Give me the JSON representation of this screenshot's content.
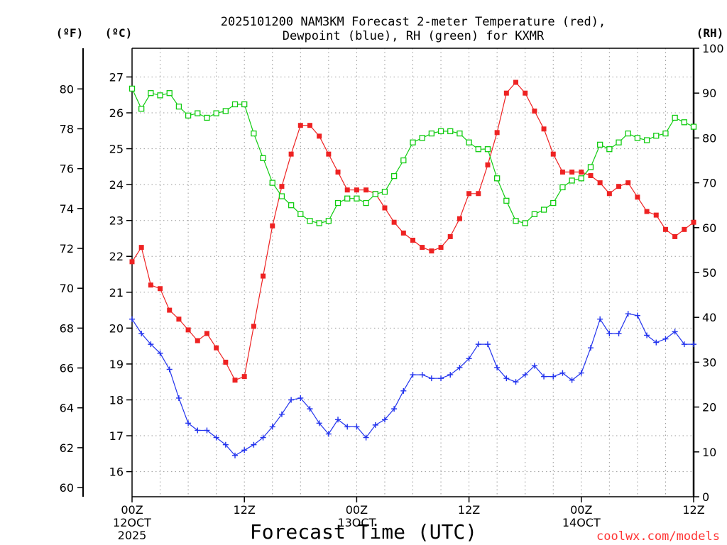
{
  "chart_data": {
    "type": "line",
    "title_line1": "2025101200 NAM3KM Forecast 2-meter Temperature (red),",
    "title_line2": "Dewpoint (blue), RH (green) for KXMR",
    "xlabel": "Forecast Time (UTC)",
    "credit": "coolwx.com/models",
    "units": {
      "fahrenheit": "(ºF)",
      "celsius": "(ºC)",
      "rh": "(RH)"
    },
    "x_unit": "forecast hour",
    "xlim": [
      0,
      60
    ],
    "x_ticks": [
      {
        "hour": 0,
        "label": "00Z",
        "sub1": "12OCT",
        "sub2": "2025"
      },
      {
        "hour": 12,
        "label": "12Z",
        "sub1": "",
        "sub2": ""
      },
      {
        "hour": 24,
        "label": "00Z",
        "sub1": "13OCT",
        "sub2": ""
      },
      {
        "hour": 36,
        "label": "12Z",
        "sub1": "",
        "sub2": ""
      },
      {
        "hour": 48,
        "label": "00Z",
        "sub1": "14OCT",
        "sub2": ""
      },
      {
        "hour": 60,
        "label": "12Z",
        "sub1": "",
        "sub2": ""
      }
    ],
    "c_lim": [
      15.3,
      27.8
    ],
    "c_ticks": [
      "16",
      "17",
      "18",
      "19",
      "20",
      "21",
      "22",
      "23",
      "24",
      "25",
      "26",
      "27"
    ],
    "f_ticks": [
      "60",
      "62",
      "64",
      "66",
      "68",
      "70",
      "72",
      "74",
      "76",
      "78",
      "80"
    ],
    "rh_lim": [
      0,
      100
    ],
    "rh_ticks": [
      "0",
      "10",
      "20",
      "30",
      "40",
      "50",
      "60",
      "70",
      "80",
      "90",
      "100"
    ],
    "colors": {
      "temperature": "#ee2222",
      "dewpoint": "#2233ee",
      "rh": "#11cc11"
    },
    "series": [
      {
        "name": "Temperature (red)",
        "unit": "C",
        "marker": "filled-square",
        "x": [
          0,
          1,
          2,
          3,
          4,
          5,
          6,
          7,
          8,
          9,
          10,
          11,
          12,
          13,
          14,
          15,
          16,
          17,
          18,
          19,
          20,
          21,
          22,
          23,
          24,
          25,
          26,
          27,
          28,
          29,
          30,
          31,
          32,
          33,
          34,
          35,
          36,
          37,
          38,
          39,
          40,
          41,
          42,
          43,
          44,
          45,
          46,
          47,
          48,
          49,
          50,
          51,
          52,
          53,
          54,
          55,
          56,
          57,
          58,
          59,
          60
        ],
        "values": [
          21.85,
          22.25,
          21.2,
          21.1,
          20.5,
          20.25,
          19.95,
          19.65,
          19.85,
          19.45,
          19.05,
          18.55,
          18.65,
          20.05,
          21.45,
          22.85,
          23.95,
          24.85,
          25.65,
          25.65,
          25.35,
          24.85,
          24.35,
          23.85,
          23.85,
          23.85,
          23.75,
          23.35,
          22.95,
          22.65,
          22.45,
          22.25,
          22.15,
          22.25,
          22.55,
          23.05,
          23.75,
          23.75,
          24.55,
          25.45,
          26.55,
          26.85,
          26.55,
          26.05,
          25.55,
          24.85,
          24.35,
          24.35,
          24.35,
          24.25,
          24.05,
          23.75,
          23.95,
          24.05,
          23.65,
          23.25,
          23.15,
          22.75,
          22.55,
          22.75,
          22.95
        ]
      },
      {
        "name": "Dewpoint (blue)",
        "unit": "C",
        "marker": "plus",
        "x": [
          0,
          1,
          2,
          3,
          4,
          5,
          6,
          7,
          8,
          9,
          10,
          11,
          12,
          13,
          14,
          15,
          16,
          17,
          18,
          19,
          20,
          21,
          22,
          23,
          24,
          25,
          26,
          27,
          28,
          29,
          30,
          31,
          32,
          33,
          34,
          35,
          36,
          37,
          38,
          39,
          40,
          41,
          42,
          43,
          44,
          45,
          46,
          47,
          48,
          49,
          50,
          51,
          52,
          53,
          54,
          55,
          56,
          57,
          58,
          59,
          60
        ],
        "values": [
          20.25,
          19.85,
          19.55,
          19.3,
          18.85,
          18.05,
          17.35,
          17.15,
          17.15,
          16.95,
          16.75,
          16.45,
          16.6,
          16.75,
          16.95,
          17.25,
          17.6,
          18.0,
          18.05,
          17.75,
          17.35,
          17.05,
          17.45,
          17.25,
          17.25,
          16.95,
          17.3,
          17.45,
          17.75,
          18.25,
          18.7,
          18.7,
          18.6,
          18.6,
          18.7,
          18.9,
          19.15,
          19.55,
          19.55,
          18.9,
          18.6,
          18.5,
          18.7,
          18.95,
          18.65,
          18.65,
          18.75,
          18.55,
          18.75,
          19.45,
          20.25,
          19.85,
          19.85,
          20.4,
          20.35,
          19.8,
          19.6,
          19.7,
          19.9,
          19.55,
          19.55
        ]
      },
      {
        "name": "RH (green)",
        "unit": "%",
        "marker": "open-square",
        "x": [
          0,
          1,
          2,
          3,
          4,
          5,
          6,
          7,
          8,
          9,
          10,
          11,
          12,
          13,
          14,
          15,
          16,
          17,
          18,
          19,
          20,
          21,
          22,
          23,
          24,
          25,
          26,
          27,
          28,
          29,
          30,
          31,
          32,
          33,
          34,
          35,
          36,
          37,
          38,
          39,
          40,
          41,
          42,
          43,
          44,
          45,
          46,
          47,
          48,
          49,
          50,
          51,
          52,
          53,
          54,
          55,
          56,
          57,
          58,
          59,
          60
        ],
        "values": [
          91,
          86.5,
          90,
          89.5,
          90,
          87,
          85,
          85.5,
          84.5,
          85.5,
          86,
          87.5,
          87.5,
          81,
          75.5,
          70,
          67,
          65,
          63,
          61.5,
          61,
          61.5,
          65.5,
          66.5,
          66.5,
          65.5,
          67.5,
          68,
          71.5,
          75,
          79,
          80,
          81,
          81.5,
          81.5,
          81,
          79,
          77.5,
          77.5,
          71,
          66,
          61.5,
          61,
          63,
          64,
          65.5,
          69,
          70.5,
          71,
          73.5,
          78.5,
          77.5,
          79,
          81,
          80,
          79.5,
          80.5,
          81,
          84.5,
          83.5,
          82.5
        ]
      }
    ]
  }
}
